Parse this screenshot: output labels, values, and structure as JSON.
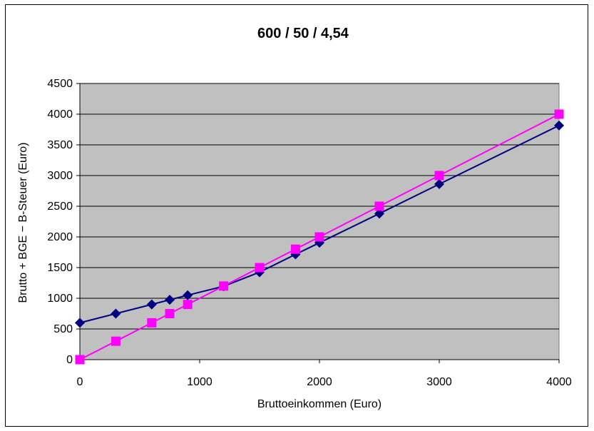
{
  "chart_data": {
    "type": "line",
    "title": "600 / 50 / 4,54",
    "xlabel": "Bruttoeinkommen (Euro)",
    "ylabel": "Brutto + BGE − B-Steuer (Euro)",
    "xlim": [
      0,
      4000
    ],
    "ylim": [
      0,
      4500
    ],
    "xticks": [
      0,
      1000,
      2000,
      3000,
      4000
    ],
    "yticks": [
      0,
      500,
      1000,
      1500,
      2000,
      2500,
      3000,
      3500,
      4000,
      4500
    ],
    "grid": true,
    "legend": "none",
    "plot_background": "#c0c0c0",
    "series": [
      {
        "color": "#000080",
        "marker": "diamond",
        "points": [
          [
            0,
            600
          ],
          [
            300,
            750
          ],
          [
            600,
            900
          ],
          [
            750,
            975
          ],
          [
            900,
            1050
          ],
          [
            1200,
            1195
          ],
          [
            1500,
            1425
          ],
          [
            1800,
            1715
          ],
          [
            2000,
            1905
          ],
          [
            2500,
            2380
          ],
          [
            3000,
            2860
          ],
          [
            4000,
            3815
          ]
        ]
      },
      {
        "color": "#ff00ff",
        "marker": "square",
        "points": [
          [
            0,
            0
          ],
          [
            300,
            300
          ],
          [
            600,
            600
          ],
          [
            750,
            750
          ],
          [
            900,
            900
          ],
          [
            1200,
            1200
          ],
          [
            1500,
            1500
          ],
          [
            1800,
            1800
          ],
          [
            2000,
            2000
          ],
          [
            2500,
            2500
          ],
          [
            3000,
            3000
          ],
          [
            4000,
            4000
          ]
        ]
      }
    ]
  }
}
